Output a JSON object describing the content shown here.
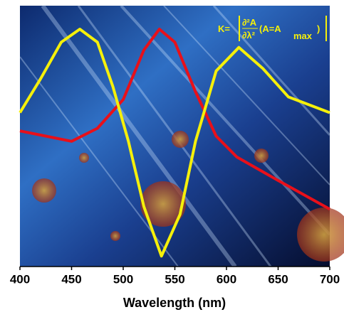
{
  "chart_data": {
    "type": "line",
    "xlabel": "Wavelength (nm)",
    "annotation": {
      "prefix": "K=",
      "numerator": "∂²A",
      "denominator": "∂λ²",
      "condition": "(A=A",
      "subscript": "max",
      "close": ")"
    },
    "xlim": [
      400,
      700
    ],
    "xticks": [
      400,
      450,
      500,
      550,
      600,
      650,
      700
    ],
    "ylim": [
      0,
      1
    ],
    "series": [
      {
        "color": "#e8101a",
        "x": [
          400,
          425,
          450,
          475,
          500,
          520,
          535,
          550,
          570,
          590,
          610,
          650,
          700
        ],
        "values": [
          0.52,
          0.5,
          0.48,
          0.53,
          0.64,
          0.83,
          0.91,
          0.86,
          0.67,
          0.5,
          0.42,
          0.33,
          0.22
        ]
      },
      {
        "color": "#f5f00a",
        "x": [
          400,
          420,
          440,
          458,
          475,
          490,
          505,
          520,
          537,
          555,
          570,
          590,
          612,
          635,
          660,
          700
        ],
        "values": [
          0.59,
          0.72,
          0.86,
          0.91,
          0.86,
          0.69,
          0.48,
          0.23,
          0.04,
          0.2,
          0.48,
          0.75,
          0.84,
          0.76,
          0.65,
          0.59
        ]
      }
    ]
  }
}
